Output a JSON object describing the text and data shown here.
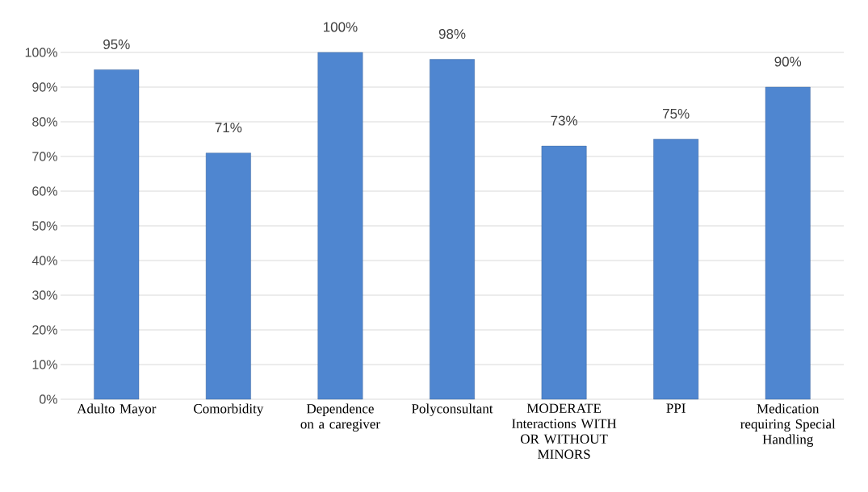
{
  "chart_data": {
    "type": "bar",
    "categories": [
      "Adulto Mayor",
      "Comorbidity",
      "Dependence on a caregiver",
      "Polyconsultant",
      "MODERATE Interactions WITH OR WITHOUT MINORS",
      "PPI",
      "Medication requiring Special Handling"
    ],
    "values": [
      95,
      71,
      100,
      98,
      73,
      75,
      90
    ],
    "value_labels": [
      "95%",
      "71%",
      "100%",
      "98%",
      "73%",
      "75%",
      "90%"
    ],
    "color": "#4f86d0",
    "ylim": [
      0,
      100
    ],
    "yticks": [
      {
        "value": 0,
        "label": "0%"
      },
      {
        "value": 10,
        "label": "10%"
      },
      {
        "value": 20,
        "label": "20%"
      },
      {
        "value": 30,
        "label": "30%"
      },
      {
        "value": 40,
        "label": "40%"
      },
      {
        "value": 50,
        "label": "50%"
      },
      {
        "value": 60,
        "label": "60%"
      },
      {
        "value": 70,
        "label": "70%"
      },
      {
        "value": 80,
        "label": "80%"
      },
      {
        "value": 90,
        "label": "90%"
      },
      {
        "value": 100,
        "label": "100%"
      }
    ],
    "grid": "y"
  }
}
